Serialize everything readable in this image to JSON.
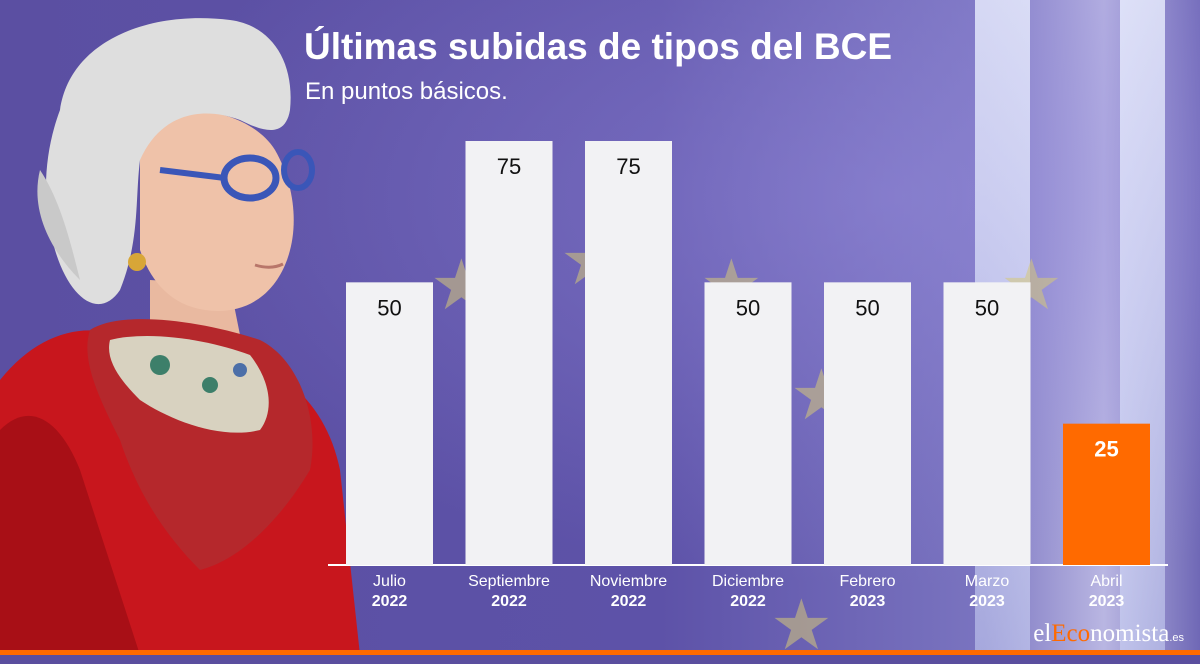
{
  "chart_data": {
    "type": "bar",
    "title": "Últimas subidas de tipos del BCE",
    "subtitle": "En puntos básicos.",
    "categories": [
      {
        "month": "Julio",
        "year": "2022"
      },
      {
        "month": "Septiembre",
        "year": "2022"
      },
      {
        "month": "Noviembre",
        "year": "2022"
      },
      {
        "month": "Diciembre",
        "year": "2022"
      },
      {
        "month": "Febrero",
        "year": "2023"
      },
      {
        "month": "Marzo",
        "year": "2023"
      },
      {
        "month": "Abril",
        "year": "2023"
      }
    ],
    "values": [
      50,
      75,
      75,
      50,
      50,
      50,
      25
    ],
    "ylim": [
      0,
      75
    ],
    "grid": false,
    "bar_colors": [
      "#f2f2f4",
      "#f2f2f4",
      "#f2f2f4",
      "#f2f2f4",
      "#f2f2f4",
      "#f2f2f4",
      "#ff6a00"
    ],
    "value_label_colors": [
      "#111111",
      "#111111",
      "#111111",
      "#111111",
      "#111111",
      "#111111",
      "#ffffff"
    ]
  },
  "logo": {
    "part1": "el",
    "part2": "Eco",
    "part3": "nomista",
    "part4": ".es"
  },
  "colors": {
    "accent": "#ff6a00",
    "background": "#5a4e9e"
  }
}
